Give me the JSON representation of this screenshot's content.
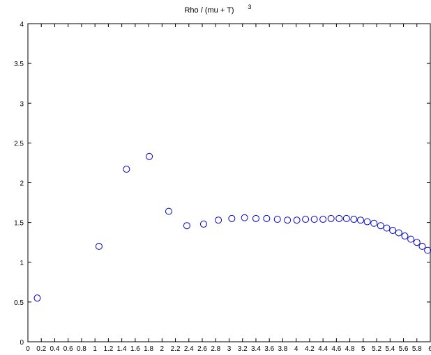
{
  "chart_data": {
    "type": "scatter",
    "title": "Rho / (mu + T)",
    "title_superscript": "3",
    "xlabel": "",
    "ylabel": "",
    "xlim": [
      0,
      6
    ],
    "ylim": [
      0,
      4
    ],
    "grid": false,
    "marker": "open-circle",
    "series_color": "#0000cc",
    "x_tick_labels": [
      "0",
      "0.2",
      "0.4",
      "0.6",
      "0.8",
      "1",
      "1.2",
      "1.4",
      "1.6",
      "1.8",
      "2",
      "2.2",
      "2.4",
      "2.6",
      "2.8",
      "3",
      "3.2",
      "3.4",
      "3.6",
      "3.8",
      "4",
      "4.2",
      "4.4",
      "4.6",
      "4.8",
      "5",
      "5.2",
      "5.4",
      "5.6",
      "5.8",
      "6"
    ],
    "y_tick_labels": [
      "0",
      "0.5",
      "1",
      "1.5",
      "2",
      "2.5",
      "3",
      "3.5",
      "4"
    ],
    "series": [
      {
        "x": [
          0.14,
          1.06,
          1.47,
          1.81,
          2.1,
          2.37,
          2.62,
          2.84,
          3.04,
          3.23,
          3.4,
          3.56,
          3.72,
          3.87,
          4.01,
          4.14,
          4.27,
          4.4,
          4.52,
          4.64,
          4.75,
          4.86,
          4.96,
          5.06,
          5.16,
          5.26,
          5.35,
          5.44,
          5.53,
          5.62,
          5.71,
          5.8,
          5.88,
          5.96
        ],
        "y": [
          0.55,
          1.2,
          2.17,
          2.33,
          1.64,
          1.46,
          1.48,
          1.53,
          1.55,
          1.56,
          1.55,
          1.55,
          1.54,
          1.53,
          1.53,
          1.54,
          1.54,
          1.54,
          1.55,
          1.55,
          1.55,
          1.54,
          1.53,
          1.51,
          1.49,
          1.46,
          1.43,
          1.4,
          1.37,
          1.33,
          1.29,
          1.25,
          1.2,
          1.15
        ]
      }
    ]
  }
}
